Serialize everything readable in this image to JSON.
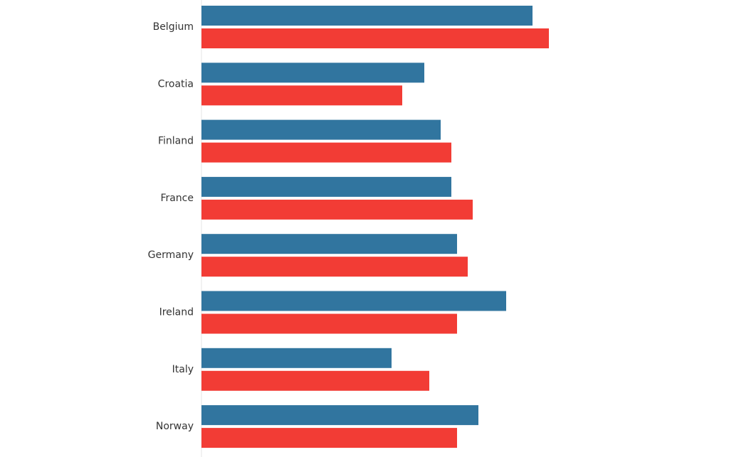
{
  "chart_data": {
    "type": "bar",
    "orientation": "horizontal",
    "categories": [
      "Belgium",
      "Croatia",
      "Finland",
      "France",
      "Germany",
      "Ireland",
      "Italy",
      "Norway"
    ],
    "series": [
      {
        "color": "#31759f",
        "values": [
          465,
          313,
          336,
          351,
          359,
          428,
          267,
          389
        ]
      },
      {
        "color": "#f23c35",
        "values": [
          488,
          282,
          351,
          381,
          374,
          359,
          320,
          359
        ]
      }
    ],
    "xlim": [
      0,
      741
    ],
    "title": "",
    "xlabel": "",
    "ylabel": "",
    "grid": false,
    "legend": "none"
  }
}
